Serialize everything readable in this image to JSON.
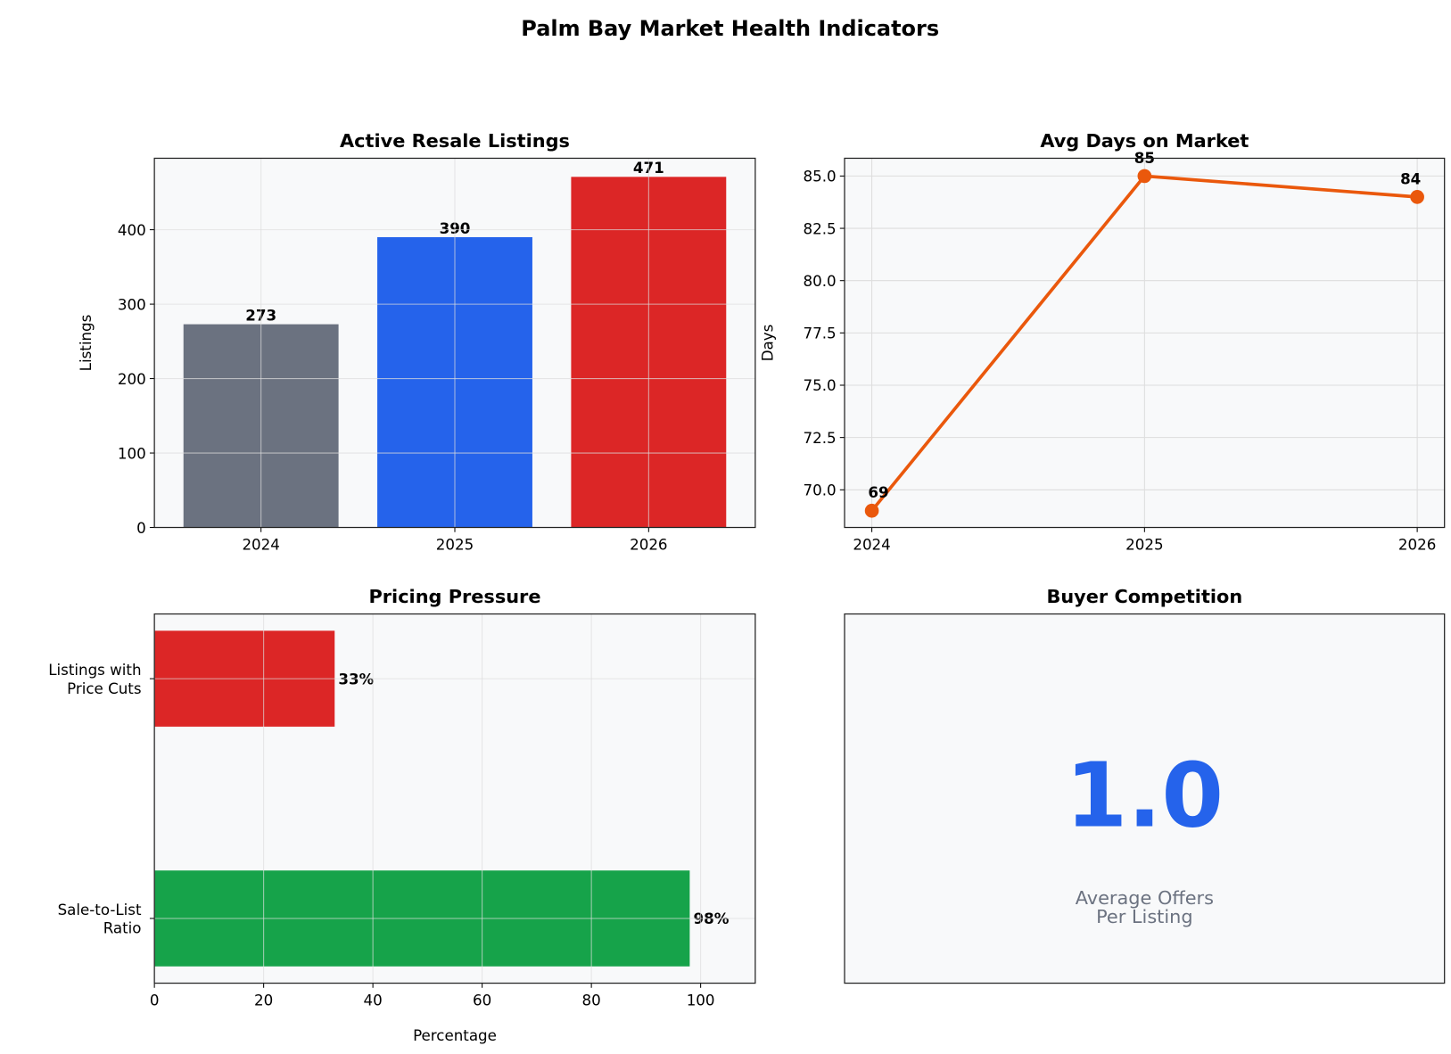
{
  "title": "Palm Bay Market Health Indicators",
  "chart_data": [
    {
      "type": "bar",
      "title": "Active Resale Listings",
      "xlabel": "",
      "ylabel": "Listings",
      "categories": [
        "2024",
        "2025",
        "2026"
      ],
      "values": [
        273,
        390,
        471
      ],
      "data_labels": [
        "273",
        "390",
        "471"
      ],
      "colors": [
        "#6b7280",
        "#2563eb",
        "#dc2626"
      ],
      "ylim": [
        0,
        496
      ],
      "yticks": [
        0,
        100,
        200,
        300,
        400
      ],
      "grid": true
    },
    {
      "type": "line",
      "title": "Avg Days on Market",
      "xlabel": "",
      "ylabel": "Days",
      "categories": [
        "2024",
        "2025",
        "2026"
      ],
      "values": [
        69,
        85,
        84
      ],
      "data_labels": [
        "69",
        "85",
        "84"
      ],
      "color": "#ea580c",
      "ylim": [
        68.2,
        85.85
      ],
      "yticks": [
        "70.0",
        "72.5",
        "75.0",
        "77.5",
        "80.0",
        "82.5",
        "85.0"
      ],
      "grid": true
    },
    {
      "type": "bar",
      "orientation": "horizontal",
      "title": "Pricing Pressure",
      "xlabel": "Percentage",
      "ylabel": "",
      "categories": [
        "Sale-to-List\nRatio",
        "Listings with\nPrice Cuts"
      ],
      "values": [
        98,
        33
      ],
      "data_labels": [
        "98%",
        "33%"
      ],
      "colors": [
        "#16a34a",
        "#dc2626"
      ],
      "xlim": [
        0,
        110
      ],
      "xticks": [
        0,
        20,
        40,
        60,
        80,
        100
      ],
      "grid": true
    },
    {
      "type": "table",
      "title": "Buyer Competition",
      "value": "1.0",
      "caption": "Average Offers\nPer Listing",
      "value_color": "#2563eb",
      "caption_color": "#6b7280"
    }
  ]
}
